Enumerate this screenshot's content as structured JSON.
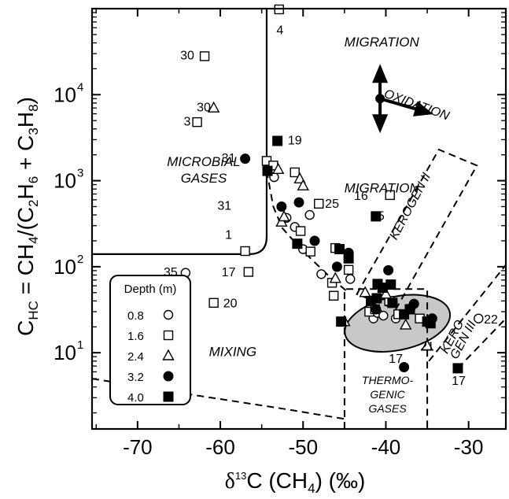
{
  "chart_data": {
    "type": "scatter",
    "xlabel": "δ13C (CH4) (‰)",
    "ylabel": "CHC = CH4/(C2H6 + C3H8)",
    "xlim": [
      -75.5,
      -25.5
    ],
    "ylim": [
      1.3,
      100000
    ],
    "yscale": "log",
    "grid": false,
    "x_ticks": [
      -70,
      -60,
      -50,
      -40,
      -30
    ],
    "x_tick_labels": [
      "-70",
      "-60",
      "-50",
      "-40",
      "-30"
    ],
    "y_ticks": [
      10,
      100,
      1000,
      10000
    ],
    "y_tick_labels": [
      "10",
      "10",
      "10",
      "10"
    ],
    "y_tick_exponents": [
      "1",
      "2",
      "3",
      "4"
    ],
    "legend": {
      "title": "Depth (m)",
      "placement": "bottom-left",
      "entries": [
        {
          "label": "0.8",
          "marker": "circle-open"
        },
        {
          "label": "1.6",
          "marker": "square-open"
        },
        {
          "label": "2.4",
          "marker": "triangle-open"
        },
        {
          "label": "3.2",
          "marker": "circle-filled"
        },
        {
          "label": "4.0",
          "marker": "square-filled"
        }
      ]
    },
    "region_labels": [
      {
        "lines": [
          "MICROBIAL",
          "GASES"
        ],
        "x": -62,
        "y": 1300
      },
      {
        "lines": [
          "MIXING"
        ],
        "x": -58.5,
        "y": 10
      },
      {
        "lines": [
          "THERMO-",
          "GENIC",
          "GASES"
        ],
        "x": -39.8,
        "y": 3.2
      },
      {
        "lines": [
          "MIGRATION"
        ],
        "x": -40.5,
        "y": 40000
      },
      {
        "lines": [
          "MIGRATION"
        ],
        "x": -40.5,
        "y": 800
      }
    ],
    "rotated_labels": [
      {
        "text": "OXIDATION",
        "x": -36.3,
        "y": 7500,
        "angle": 20
      },
      {
        "text": "KEROGEN II",
        "x": -37.0,
        "y": 500,
        "angle": -62
      },
      {
        "text": "KERO-",
        "x": -31.8,
        "y": 16,
        "angle": -62
      },
      {
        "text": "GEN III",
        "x": -30.6,
        "y": 14,
        "angle": -62
      }
    ],
    "point_labels": [
      {
        "text": "4",
        "x": -52.8,
        "y": 55000
      },
      {
        "text": "30",
        "x": -64.0,
        "y": 28000
      },
      {
        "text": "30",
        "x": -62.0,
        "y": 7000
      },
      {
        "text": "3",
        "x": -64.0,
        "y": 4800
      },
      {
        "text": "19",
        "x": -51.0,
        "y": 2900
      },
      {
        "text": "31",
        "x": -59.0,
        "y": 1800
      },
      {
        "text": "31",
        "x": -59.5,
        "y": 500
      },
      {
        "text": "16",
        "x": -43.0,
        "y": 650
      },
      {
        "text": "25",
        "x": -46.5,
        "y": 530
      },
      {
        "text": "25",
        "x": -41.0,
        "y": 380
      },
      {
        "text": "1",
        "x": -59.0,
        "y": 230
      },
      {
        "text": "17",
        "x": -59.0,
        "y": 85
      },
      {
        "text": "35",
        "x": -66.0,
        "y": 85
      },
      {
        "text": "20",
        "x": -58.8,
        "y": 37
      },
      {
        "text": "22",
        "x": -27.3,
        "y": 24
      },
      {
        "text": "21",
        "x": -35.0,
        "y": 11.5
      },
      {
        "text": "17",
        "x": -38.8,
        "y": 8.3
      },
      {
        "text": "17",
        "x": -31.2,
        "y": 4.6
      }
    ],
    "series": [
      {
        "name": "0.8",
        "marker": "circle-open",
        "points": [
          [
            -64.2,
            85
          ],
          [
            -53.5,
            1100
          ],
          [
            -52.0,
            370
          ],
          [
            -51.0,
            290
          ],
          [
            -50.0,
            160
          ],
          [
            -49.2,
            400
          ],
          [
            -47.8,
            82
          ],
          [
            -44.3,
            72
          ],
          [
            -41.5,
            25
          ],
          [
            -41.0,
            29
          ],
          [
            -40.3,
            27
          ],
          [
            -38.8,
            25
          ],
          [
            -37.0,
            33
          ],
          [
            -28.8,
            25
          ]
        ]
      },
      {
        "name": "1.6",
        "marker": "square-open",
        "points": [
          [
            -52.9,
            98000
          ],
          [
            -61.9,
            28000
          ],
          [
            -62.8,
            4800
          ],
          [
            -54.4,
            1700
          ],
          [
            -53.6,
            1500
          ],
          [
            -51.0,
            1250
          ],
          [
            -48.1,
            540
          ],
          [
            -39.5,
            680
          ],
          [
            -57.0,
            152
          ],
          [
            -56.6,
            87
          ],
          [
            -60.8,
            38
          ],
          [
            -50.3,
            260
          ],
          [
            -49.1,
            150
          ],
          [
            -46.1,
            165
          ],
          [
            -44.5,
            92
          ],
          [
            -46.5,
            65
          ],
          [
            -46.3,
            46
          ],
          [
            -42.0,
            30
          ],
          [
            -41.3,
            32
          ],
          [
            -39.6,
            40
          ],
          [
            -38.5,
            28
          ],
          [
            -35.9,
            25
          ]
        ]
      },
      {
        "name": "2.4",
        "marker": "triangle-open",
        "points": [
          [
            -60.8,
            7000
          ],
          [
            -53.0,
            1350
          ],
          [
            -50.4,
            1050
          ],
          [
            -50.0,
            870
          ],
          [
            -52.6,
            330
          ],
          [
            -52.3,
            380
          ],
          [
            -46.1,
            73
          ],
          [
            -45.0,
            23
          ],
          [
            -40.0,
            48
          ],
          [
            -42.5,
            50
          ],
          [
            -37.6,
            21
          ],
          [
            -35.0,
            12
          ]
        ]
      },
      {
        "name": "3.2",
        "marker": "circle-filled",
        "points": [
          [
            -57.0,
            1800
          ],
          [
            -52.6,
            500
          ],
          [
            -50.5,
            560
          ],
          [
            -48.6,
            200
          ],
          [
            -44.5,
            145
          ],
          [
            -45.9,
            100
          ],
          [
            -39.7,
            91
          ],
          [
            -41.2,
            32
          ],
          [
            -36.6,
            37
          ],
          [
            -34.4,
            25
          ],
          [
            -37.8,
            6.8
          ]
        ]
      },
      {
        "name": "4.0",
        "marker": "square-filled",
        "points": [
          [
            -53.1,
            2900
          ],
          [
            -54.3,
            1300
          ],
          [
            -50.7,
            185
          ],
          [
            -45.6,
            160
          ],
          [
            -44.5,
            125
          ],
          [
            -41.2,
            385
          ],
          [
            -41.0,
            63
          ],
          [
            -39.4,
            62
          ],
          [
            -41.1,
            43
          ],
          [
            -41.8,
            40
          ],
          [
            -40.4,
            57
          ],
          [
            -39.2,
            38
          ],
          [
            -37.1,
            32
          ],
          [
            -37.8,
            28
          ],
          [
            -35.0,
            23
          ],
          [
            -34.6,
            22
          ],
          [
            -45.4,
            23
          ],
          [
            -31.3,
            6.6
          ]
        ]
      }
    ]
  }
}
